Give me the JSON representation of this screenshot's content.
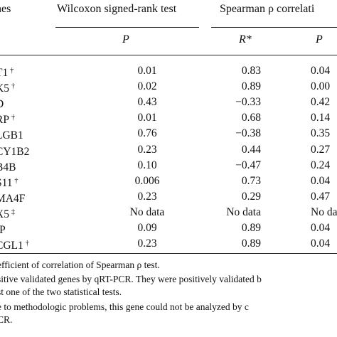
{
  "header": {
    "genes": "nes",
    "wilcoxon": "Wilcoxon signed-rank test",
    "spearman": "Spearman ρ correlati",
    "p_label": "P",
    "r_label": "R*",
    "p2_label": "P"
  },
  "rows": [
    {
      "gene": "T1",
      "mark": "†",
      "wilcoxon_p": "0.01",
      "r": "0.83",
      "p": "0.04"
    },
    {
      "gene": "K5",
      "mark": "†",
      "wilcoxon_p": "0.02",
      "r": "0.89",
      "p": "0.00"
    },
    {
      "gene": "D",
      "mark": "",
      "wilcoxon_p": "0.43",
      "r": "−0.33",
      "p": "0.42"
    },
    {
      "gene": "RP",
      "mark": "†",
      "wilcoxon_p": "0.01",
      "r": "0.68",
      "p": "0.14"
    },
    {
      "gene": "LGB1",
      "mark": "",
      "wilcoxon_p": "0.76",
      "r": "−0.38",
      "p": "0.35"
    },
    {
      "gene": "CY1B2",
      "mark": "",
      "wilcoxon_p": "0.23",
      "r": "0.44",
      "p": "0.27"
    },
    {
      "gene": "B4B",
      "mark": "",
      "wilcoxon_p": "0.10",
      "r": "−0.47",
      "p": "0.24"
    },
    {
      "gene": "S11",
      "mark": "†",
      "wilcoxon_p": "0.006",
      "r": "0.73",
      "p": "0.04"
    },
    {
      "gene": "MA4F",
      "mark": "",
      "wilcoxon_p": "0.23",
      "r": "0.29",
      "p": "0.47"
    },
    {
      "gene": "X5",
      "mark": "‡",
      "wilcoxon_p": "No data",
      "r": "No data",
      "p": "No da"
    },
    {
      "gene": "IP",
      "mark": "",
      "wilcoxon_p": "0.09",
      "r": "0.89",
      "p": "0.04"
    },
    {
      "gene": "CGL1",
      "mark": "†",
      "wilcoxon_p": "0.23",
      "r": "0.89",
      "p": "0.04"
    }
  ],
  "footnotes": [
    "efficient of correlation of Spearman ρ test.",
    "sitive validated genes by qRT-PCR. They were positively validated b",
    "st one of the two statistical tests.",
    "e to methodologic problems, this gene could not be analyzed by c",
    "CR."
  ]
}
